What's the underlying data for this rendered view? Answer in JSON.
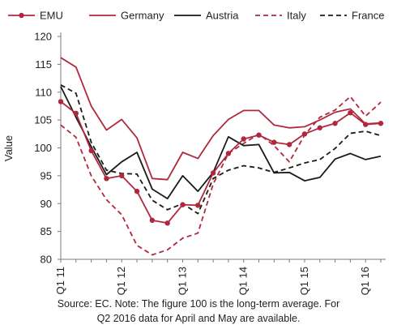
{
  "chart_data": {
    "type": "line",
    "title": "",
    "xlabel": "",
    "ylabel": "Value",
    "ylim": [
      80,
      120
    ],
    "yticks": [
      80,
      85,
      90,
      95,
      100,
      105,
      110,
      115,
      120
    ],
    "grid": false,
    "legend_position": "top",
    "categories": [
      "Q1 11",
      "Q2 11",
      "Q3 11",
      "Q4 11",
      "Q1 12",
      "Q2 12",
      "Q3 12",
      "Q4 12",
      "Q1 13",
      "Q2 13",
      "Q3 13",
      "Q4 13",
      "Q1 14",
      "Q2 14",
      "Q3 14",
      "Q4 14",
      "Q1 15",
      "Q2 15",
      "Q3 15",
      "Q4 15",
      "Q1 16",
      "Q2 16"
    ],
    "xtick_labels": [
      {
        "index": 0,
        "label": "Q1 11"
      },
      {
        "index": 4,
        "label": "Q1 12"
      },
      {
        "index": 8,
        "label": "Q1 13"
      },
      {
        "index": 12,
        "label": "Q1 14"
      },
      {
        "index": 16,
        "label": "Q1 15"
      },
      {
        "index": 20,
        "label": "Q1 16"
      }
    ],
    "series": [
      {
        "name": "EMU",
        "color": "#b0283e",
        "style": "solid",
        "marker": "circle",
        "values": [
          108.3,
          106.2,
          99.5,
          94.5,
          95.0,
          92.2,
          87.0,
          86.5,
          89.8,
          89.7,
          95.5,
          99.0,
          101.6,
          102.3,
          101.0,
          100.6,
          102.5,
          103.6,
          104.4,
          106.3,
          104.2,
          104.4
        ]
      },
      {
        "name": "Germany",
        "color": "#b0283e",
        "style": "solid",
        "marker": "none",
        "values": [
          116.2,
          114.5,
          107.5,
          103.2,
          105.1,
          101.8,
          94.5,
          94.3,
          99.2,
          98.1,
          102.2,
          105.1,
          106.7,
          106.7,
          104.1,
          103.6,
          103.8,
          105.0,
          106.4,
          107.0,
          104.3,
          104.5
        ]
      },
      {
        "name": "Austria",
        "color": "#1a1a1a",
        "style": "solid",
        "marker": "none",
        "values": [
          111.0,
          105.5,
          100.2,
          95.2,
          97.5,
          99.2,
          92.6,
          90.9,
          95.0,
          92.2,
          95.6,
          102.0,
          100.4,
          100.6,
          95.5,
          95.6,
          94.1,
          94.7,
          98.0,
          99.0,
          97.9,
          98.5
        ]
      },
      {
        "name": "Italy",
        "color": "#b0283e",
        "style": "dashed",
        "marker": "none",
        "values": [
          104.1,
          101.9,
          95.0,
          90.7,
          88.0,
          82.5,
          80.8,
          81.7,
          83.8,
          84.7,
          93.5,
          99.0,
          100.8,
          102.5,
          100.4,
          97.5,
          102.3,
          105.5,
          106.8,
          109.2,
          105.7,
          108.2
        ]
      },
      {
        "name": "France",
        "color": "#1a1a1a",
        "style": "dashed",
        "marker": "none",
        "values": [
          111.3,
          109.8,
          101.0,
          96.0,
          95.4,
          95.3,
          90.6,
          88.9,
          90.0,
          88.2,
          94.5,
          96.0,
          96.8,
          96.4,
          95.6,
          96.4,
          97.3,
          97.9,
          99.9,
          102.6,
          103.0,
          102.2
        ]
      }
    ]
  },
  "caption": {
    "line1": "Source: EC. Note: The figure 100 is the long-term average. For",
    "line2": "Q2 2016 data for April and May are available."
  }
}
